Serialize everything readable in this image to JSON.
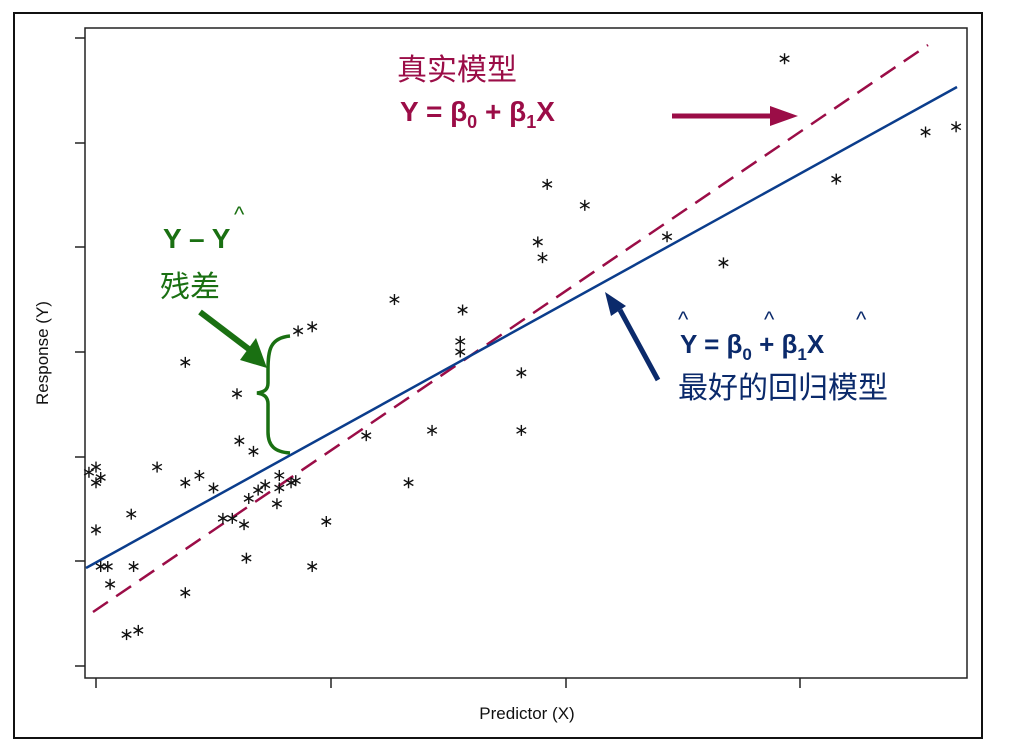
{
  "chart_data": {
    "type": "scatter",
    "title": "",
    "xlabel": "Predictor (X)",
    "ylabel": "Response (Y)",
    "x_ticks": [
      "",
      "",
      "",
      ""
    ],
    "y_ticks": [
      "",
      "",
      "",
      "",
      "",
      "",
      ""
    ],
    "grid": false,
    "xlim": [
      0,
      3.7
    ],
    "ylim": [
      0,
      6.1
    ],
    "points": [
      [
        0.0,
        1.9
      ],
      [
        -0.03,
        1.85
      ],
      [
        0.0,
        1.75
      ],
      [
        0.02,
        1.8
      ],
      [
        0.0,
        1.3
      ],
      [
        0.02,
        0.95
      ],
      [
        0.05,
        0.95
      ],
      [
        0.06,
        0.78
      ],
      [
        0.13,
        0.3
      ],
      [
        0.18,
        0.34
      ],
      [
        0.16,
        0.95
      ],
      [
        0.15,
        1.45
      ],
      [
        0.26,
        1.9
      ],
      [
        0.38,
        0.7
      ],
      [
        0.38,
        2.9
      ],
      [
        0.38,
        1.75
      ],
      [
        0.44,
        1.82
      ],
      [
        0.5,
        1.7
      ],
      [
        0.54,
        1.41
      ],
      [
        0.58,
        1.41
      ],
      [
        0.6,
        2.6
      ],
      [
        0.61,
        2.15
      ],
      [
        0.63,
        1.35
      ],
      [
        0.64,
        1.03
      ],
      [
        0.67,
        2.05
      ],
      [
        0.65,
        1.6
      ],
      [
        0.69,
        1.68
      ],
      [
        0.72,
        1.73
      ],
      [
        0.77,
        1.55
      ],
      [
        0.78,
        1.7
      ],
      [
        0.78,
        1.82
      ],
      [
        0.83,
        1.75
      ],
      [
        0.85,
        1.77
      ],
      [
        0.86,
        3.2
      ],
      [
        0.92,
        3.24
      ],
      [
        0.92,
        0.95
      ],
      [
        0.98,
        1.38
      ],
      [
        1.15,
        2.2
      ],
      [
        1.27,
        3.5
      ],
      [
        1.33,
        1.75
      ],
      [
        1.43,
        2.25
      ],
      [
        1.55,
        3.0
      ],
      [
        1.55,
        3.1
      ],
      [
        1.56,
        3.4
      ],
      [
        1.81,
        2.25
      ],
      [
        1.81,
        2.8
      ],
      [
        1.88,
        4.05
      ],
      [
        1.9,
        3.9
      ],
      [
        1.92,
        4.6
      ],
      [
        2.08,
        4.4
      ],
      [
        2.43,
        4.1
      ],
      [
        2.67,
        3.85
      ],
      [
        2.93,
        5.8
      ],
      [
        3.15,
        4.65
      ],
      [
        3.53,
        5.1
      ],
      [
        3.66,
        5.15
      ]
    ],
    "series": [
      {
        "name": "True model (dashed)",
        "color": "#9b0d47",
        "style": "dashed",
        "intercept": 0.4,
        "slope": 1.55
      },
      {
        "name": "Fitted regression (solid)",
        "color": "#0b3d8c",
        "style": "solid",
        "intercept": 0.95,
        "slope": 1.2
      }
    ],
    "annotations": [
      {
        "text": "真实模型",
        "color": "#9b0d47"
      },
      {
        "text": "Y = β0 + β1X",
        "color": "#9b0d47"
      },
      {
        "text": "Y – Ŷ",
        "color": "#1a7012"
      },
      {
        "text": "残差",
        "color": "#1a7012"
      },
      {
        "text": "Ŷ = β̂0 + β̂1X",
        "color": "#0b2a6b"
      },
      {
        "text": "最好的回归模型",
        "color": "#0b2a6b"
      }
    ]
  },
  "labels": {
    "xlabel": "Predictor (X)",
    "ylabel": "Response (Y)",
    "true_model_title": "真实模型",
    "true_eq_Y": "Y = β",
    "true_eq_sub0": "0",
    "true_eq_plus": " + β",
    "true_eq_sub1": "1",
    "true_eq_X": "X",
    "residual_eq": "Y – Y",
    "residual_hat": "^",
    "residual_title": "残差",
    "fit_eq_Y": "Y = β",
    "fit_eq_sub0": "0",
    "fit_eq_plus": " + β",
    "fit_eq_sub1": "1",
    "fit_eq_X": "X",
    "fit_hat": "^",
    "fit_title": "最好的回归模型"
  },
  "colors": {
    "true_model": "#9b0d47",
    "fit_model": "#0b3d8c",
    "residual": "#1a7012",
    "fit_text": "#0b2a6b"
  }
}
